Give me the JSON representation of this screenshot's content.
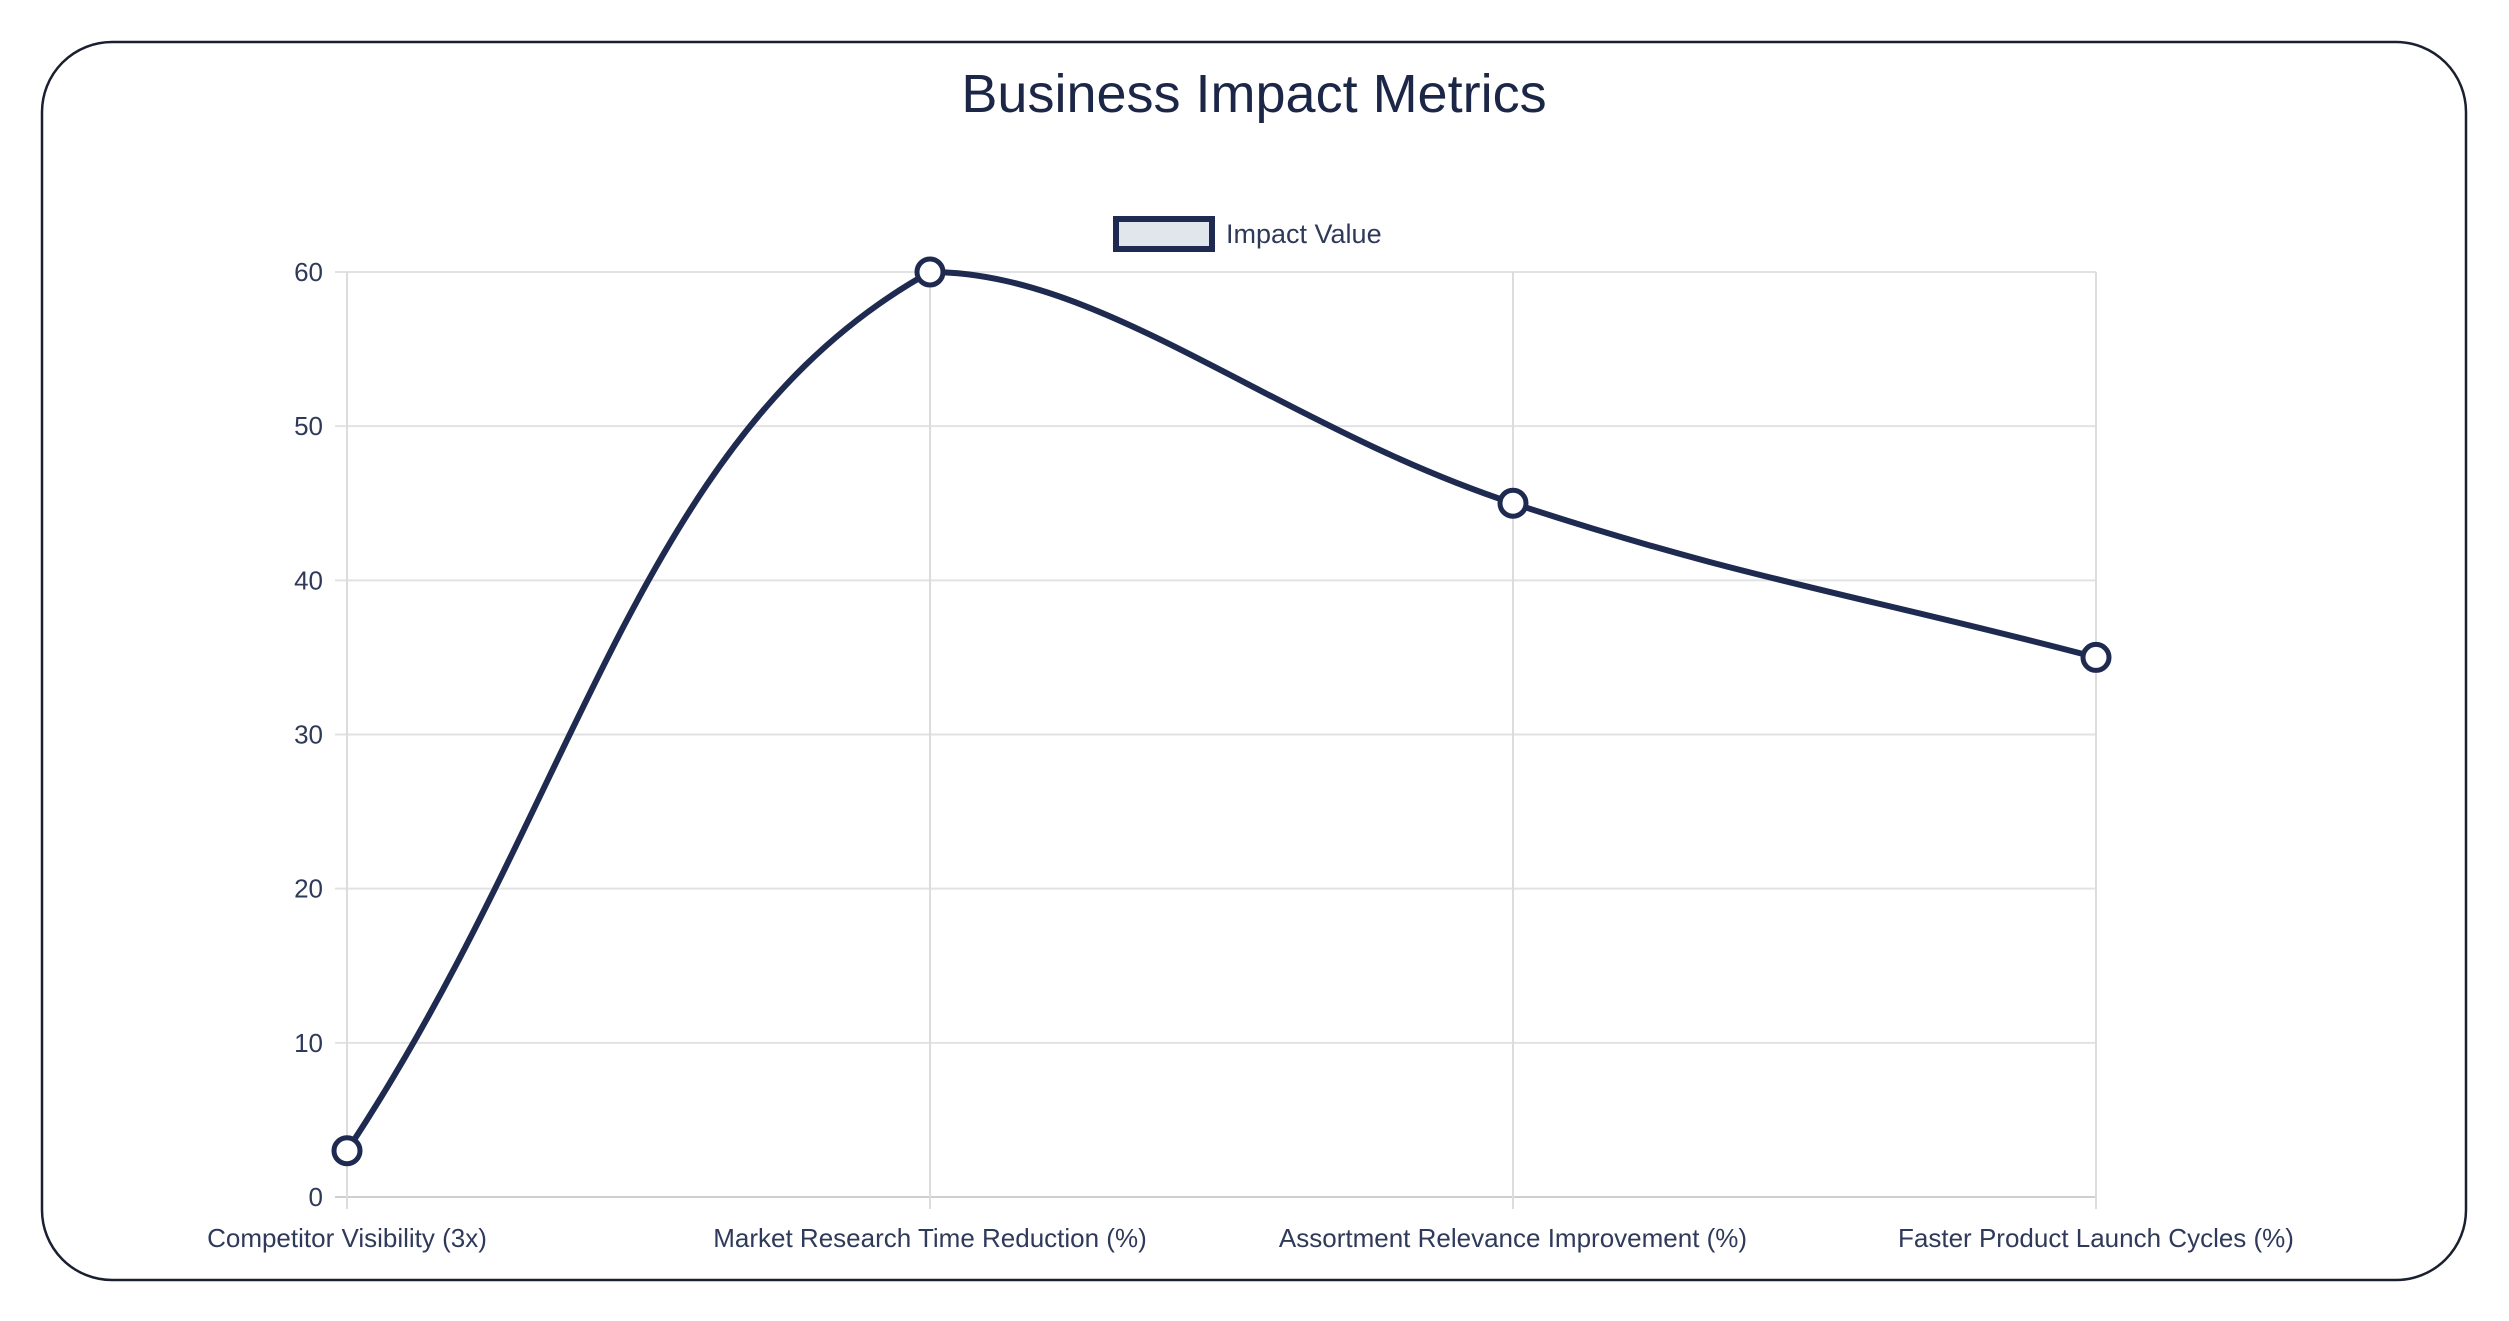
{
  "chart_data": {
    "type": "line",
    "title": "Business Impact Metrics",
    "categories": [
      "Competitor Visibility (3x)",
      "Market Research Time Reduction (%)",
      "Assortment Relevance Improvement (%)",
      "Faster Product Launch Cycles (%)"
    ],
    "series": [
      {
        "name": "Impact Value",
        "values": [
          3,
          60,
          45,
          35
        ]
      }
    ],
    "xlabel": "",
    "ylabel": "",
    "ylim": [
      0,
      60
    ],
    "yticks": [
      0,
      10,
      20,
      30,
      40,
      50,
      60
    ],
    "grid": true,
    "legend": "top-center",
    "smooth": true,
    "colors": {
      "line": "#1e2a4f",
      "legend_fill": "#e1e5ec",
      "grid": "#e2e2e2",
      "text": "#2f3a5a"
    }
  }
}
